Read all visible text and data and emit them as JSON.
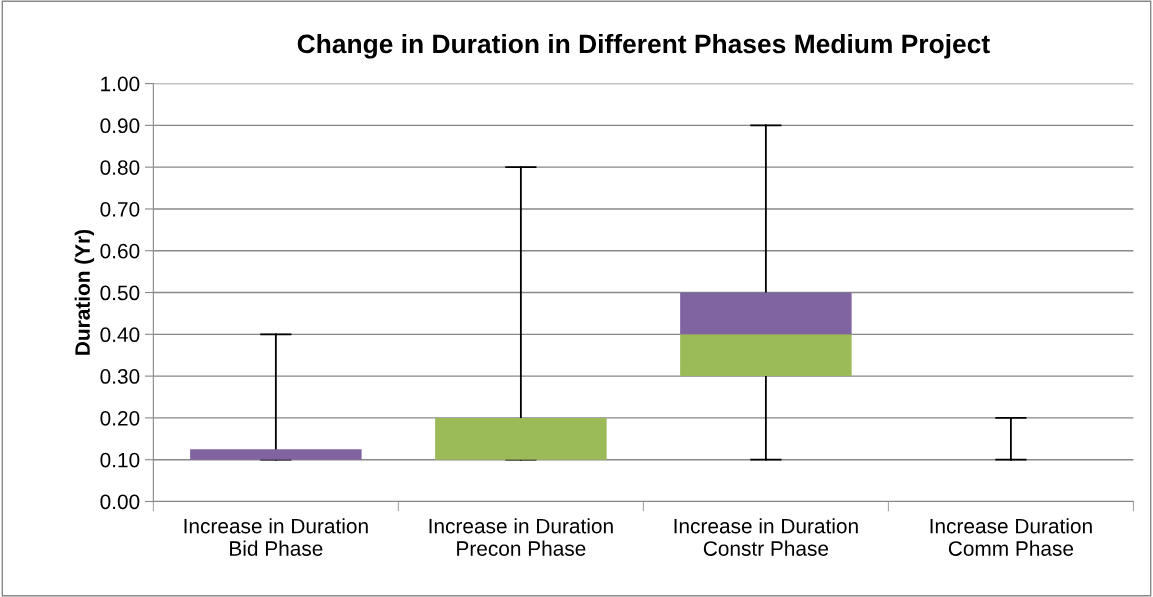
{
  "chart_data": {
    "type": "box",
    "title": "Change in Duration in Different Phases Medium Project",
    "ylabel": "Duration (Yr)",
    "categories": [
      "Increase in Duration\nBid Phase",
      "Increase in Duration\nPrecon Phase",
      "Increase in Duration\nConstr Phase",
      "Increase Duration\nComm Phase"
    ],
    "boxes": [
      {
        "low": 0.1,
        "q1": 0.1,
        "median": 0.1,
        "q3": 0.125,
        "high": 0.4
      },
      {
        "low": 0.1,
        "q1": 0.1,
        "median": 0.2,
        "q3": 0.2,
        "high": 0.8
      },
      {
        "low": 0.1,
        "q1": 0.3,
        "median": 0.4,
        "q3": 0.5,
        "high": 0.9
      },
      {
        "low": 0.1,
        "q1": 0.1,
        "median": 0.1,
        "q3": 0.1,
        "high": 0.2
      }
    ],
    "colors": [
      [
        "#9bbb59",
        "#8064a2"
      ],
      [
        "#9bbb59",
        "#8064a2"
      ],
      [
        "#9bbb59",
        "#8064a2"
      ],
      [
        "#9bbb59",
        "#8064a2"
      ]
    ],
    "ylim": [
      0,
      1
    ],
    "yticks": [
      {
        "value": 0,
        "label": "0.00"
      },
      {
        "value": 0.1,
        "label": "0.10"
      },
      {
        "value": 0.2,
        "label": "0.20"
      },
      {
        "value": 0.3,
        "label": "0.30"
      },
      {
        "value": 0.4,
        "label": "0.40"
      },
      {
        "value": 0.5,
        "label": "0.50"
      },
      {
        "value": 0.6,
        "label": "0.60"
      },
      {
        "value": 0.7,
        "label": "0.70"
      },
      {
        "value": 0.8,
        "label": "0.80"
      },
      {
        "value": 0.9,
        "label": "0.90"
      },
      {
        "value": 1,
        "label": "1.00"
      }
    ],
    "grid": "y"
  }
}
